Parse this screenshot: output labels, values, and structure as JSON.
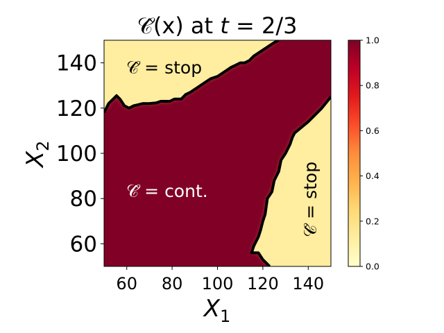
{
  "chart_data": {
    "type": "heatmap",
    "title": "Ĉ(x) at t = 2/3",
    "title_parts": {
      "func": "𝒞̂(x) at ",
      "t": "t",
      "eq": " = 2/3"
    },
    "xlabel": "X",
    "xlabel_sub": "1",
    "ylabel": "X",
    "ylabel_sub": "2",
    "xlim": [
      50,
      150
    ],
    "ylim": [
      50,
      150
    ],
    "x_ticks": [
      60,
      80,
      100,
      120,
      140
    ],
    "y_ticks": [
      60,
      80,
      100,
      120,
      140
    ],
    "colorbar": {
      "colormap": "YlOrRd",
      "range": [
        0.0,
        1.0
      ],
      "ticks": [
        "0.0",
        "0.2",
        "0.4",
        "0.6",
        "0.8",
        "1.0"
      ]
    },
    "colors": {
      "low": "#ffffcc",
      "high": "#800026",
      "boundary": "#000000"
    },
    "annotations": {
      "stop_top": "𝒞̂ = stop",
      "cont": "𝒞̂ = cont.",
      "stop_right": "𝒞̂ = stop"
    },
    "regions": [
      {
        "label": "stop",
        "location": "upper-left",
        "value": 0.0
      },
      {
        "label": "cont.",
        "location": "center / lower-left",
        "value": 1.0
      },
      {
        "label": "stop",
        "location": "lower-right",
        "value": 0.0
      }
    ],
    "boundary_upper": [
      [
        50,
        118
      ],
      [
        52,
        122
      ],
      [
        54,
        124
      ],
      [
        55.5,
        125.5
      ],
      [
        57,
        124
      ],
      [
        59,
        121
      ],
      [
        61,
        120
      ],
      [
        63,
        121
      ],
      [
        65,
        121.5
      ],
      [
        67,
        122
      ],
      [
        70,
        122
      ],
      [
        73,
        122.3
      ],
      [
        75,
        123
      ],
      [
        79,
        123
      ],
      [
        81,
        124
      ],
      [
        84,
        124
      ],
      [
        86,
        126
      ],
      [
        88,
        127
      ],
      [
        91,
        129
      ],
      [
        94,
        131
      ],
      [
        97,
        133
      ],
      [
        100,
        134
      ],
      [
        103,
        136
      ],
      [
        106,
        138
      ],
      [
        108,
        139
      ],
      [
        110,
        140
      ],
      [
        112,
        140
      ],
      [
        114,
        141
      ],
      [
        116,
        143
      ],
      [
        119,
        145
      ],
      [
        122,
        147
      ],
      [
        125,
        149
      ],
      [
        127,
        150
      ]
    ],
    "boundary_lower": [
      [
        150,
        125
      ],
      [
        146,
        120
      ],
      [
        140,
        114
      ],
      [
        134,
        109
      ],
      [
        133,
        107
      ],
      [
        132,
        104
      ],
      [
        130,
        100
      ],
      [
        128,
        97
      ],
      [
        127,
        92
      ],
      [
        125,
        88
      ],
      [
        124,
        83
      ],
      [
        122,
        80
      ],
      [
        121,
        73
      ],
      [
        120,
        70
      ],
      [
        119,
        66
      ],
      [
        118,
        63
      ],
      [
        117,
        61
      ],
      [
        116,
        59
      ],
      [
        115,
        56
      ],
      [
        118,
        56
      ],
      [
        120,
        53
      ],
      [
        122,
        51
      ],
      [
        123,
        50
      ]
    ]
  }
}
